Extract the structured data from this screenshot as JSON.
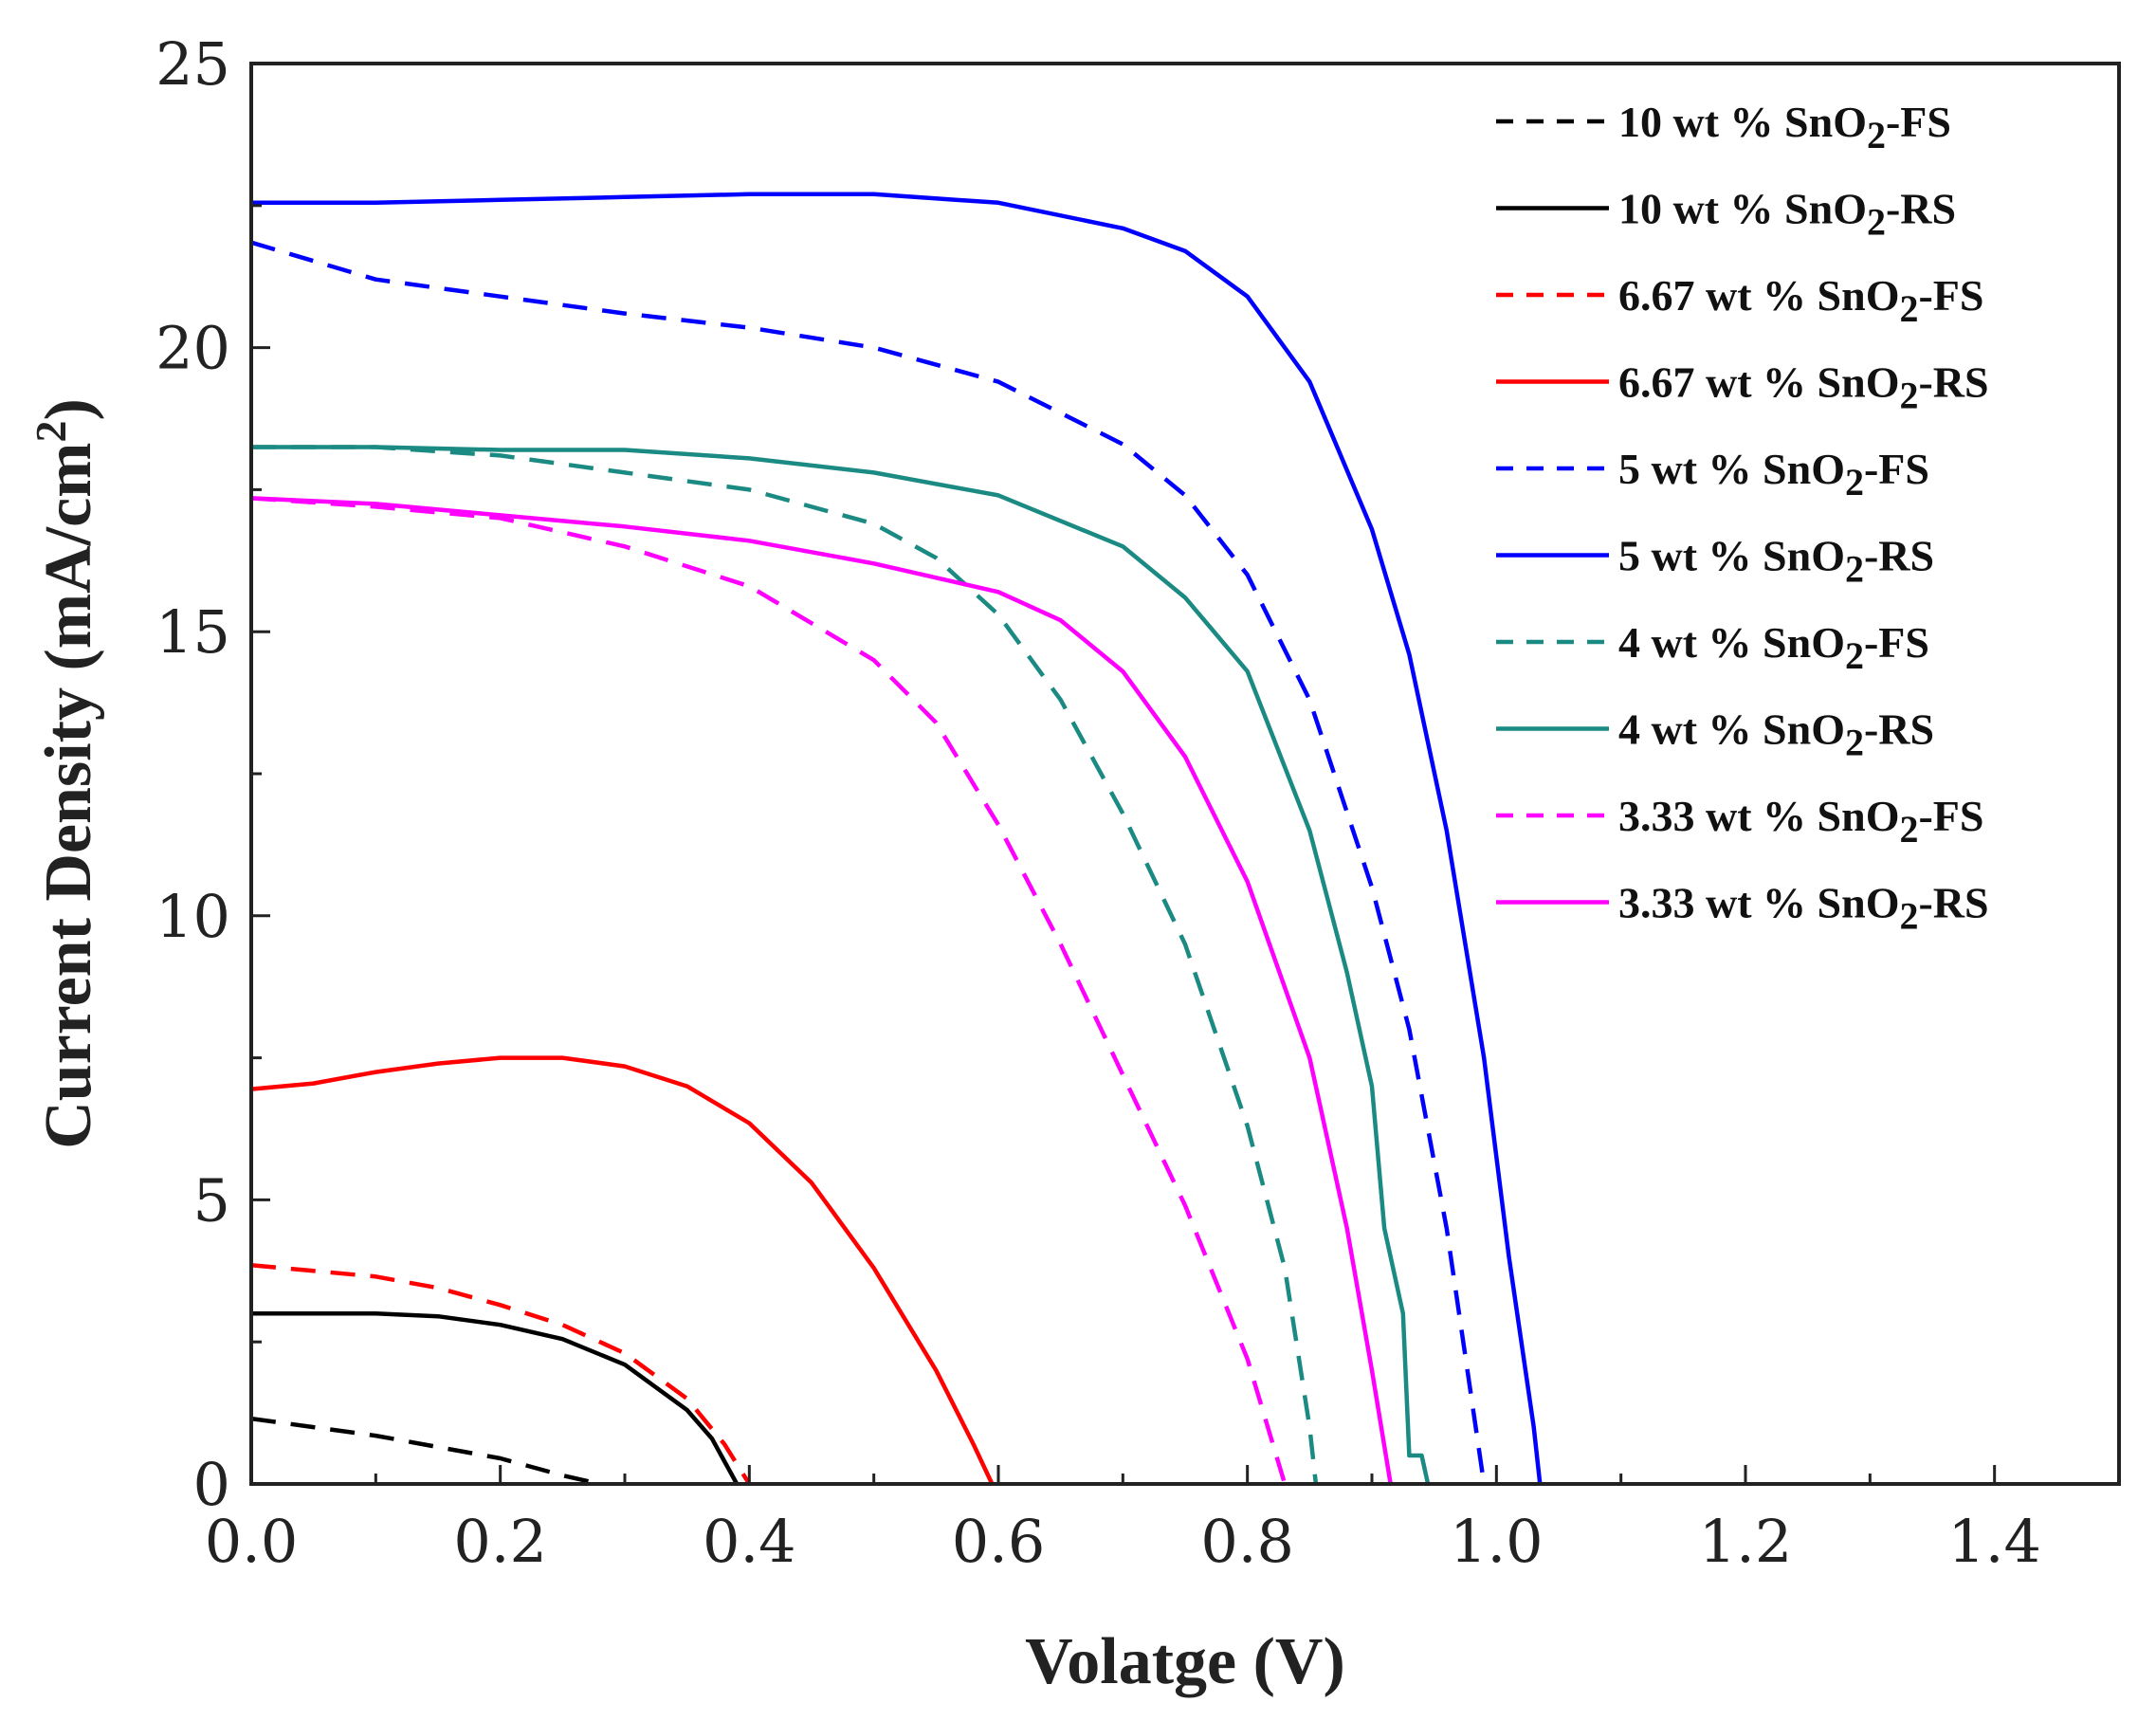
{
  "chart_data": {
    "type": "line",
    "title": "",
    "xlabel": "Volatge (V)",
    "ylabel": "Current Density (mA/cm",
    "ylabel_sup": "2",
    "ylabel_close": ")",
    "xlim": [
      0,
      1.5
    ],
    "ylim": [
      0,
      25
    ],
    "xticks": [
      0.0,
      0.2,
      0.4,
      0.6,
      0.8,
      1.0,
      1.2,
      1.4
    ],
    "xtick_labels": [
      "0.0",
      "0.2",
      "0.4",
      "0.6",
      "0.8",
      "1.0",
      "1.2",
      "1.4"
    ],
    "yticks": [
      0,
      5,
      10,
      15,
      20,
      25
    ],
    "ytick_labels": [
      "0",
      "5",
      "10",
      "15",
      "20",
      "25"
    ],
    "legend_position": "top-right",
    "series": [
      {
        "name_prefix": "10 wt % SnO",
        "name_sub": "2",
        "name_suffix": "-FS",
        "color": "#000000",
        "dash": true,
        "points": [
          [
            0,
            1.15
          ],
          [
            0.05,
            1.0
          ],
          [
            0.1,
            0.85
          ],
          [
            0.15,
            0.65
          ],
          [
            0.2,
            0.45
          ],
          [
            0.25,
            0.15
          ],
          [
            0.28,
            0.0
          ]
        ]
      },
      {
        "name_prefix": "10 wt % SnO",
        "name_sub": "2",
        "name_suffix": "-RS",
        "color": "#000000",
        "dash": false,
        "points": [
          [
            0,
            3.0
          ],
          [
            0.1,
            3.0
          ],
          [
            0.15,
            2.95
          ],
          [
            0.2,
            2.8
          ],
          [
            0.25,
            2.55
          ],
          [
            0.3,
            2.1
          ],
          [
            0.35,
            1.3
          ],
          [
            0.37,
            0.8
          ],
          [
            0.39,
            0.0
          ]
        ]
      },
      {
        "name_prefix": "6.67 wt % SnO",
        "name_sub": "2",
        "name_suffix": "-FS",
        "color": "#ff0000",
        "dash": true,
        "points": [
          [
            0,
            3.85
          ],
          [
            0.05,
            3.75
          ],
          [
            0.1,
            3.65
          ],
          [
            0.15,
            3.45
          ],
          [
            0.2,
            3.15
          ],
          [
            0.25,
            2.8
          ],
          [
            0.3,
            2.3
          ],
          [
            0.35,
            1.5
          ],
          [
            0.38,
            0.7
          ],
          [
            0.4,
            0.0
          ]
        ]
      },
      {
        "name_prefix": "6.67 wt % SnO",
        "name_sub": "2",
        "name_suffix": "-RS",
        "color": "#ff0000",
        "dash": false,
        "points": [
          [
            0,
            6.95
          ],
          [
            0.05,
            7.05
          ],
          [
            0.1,
            7.25
          ],
          [
            0.15,
            7.4
          ],
          [
            0.2,
            7.5
          ],
          [
            0.25,
            7.5
          ],
          [
            0.3,
            7.35
          ],
          [
            0.35,
            7.0
          ],
          [
            0.4,
            6.35
          ],
          [
            0.45,
            5.3
          ],
          [
            0.5,
            3.8
          ],
          [
            0.55,
            2.0
          ],
          [
            0.58,
            0.7
          ],
          [
            0.595,
            0.0
          ]
        ]
      },
      {
        "name_prefix": "5 wt % SnO",
        "name_sub": "2",
        "name_suffix": "-FS",
        "color": "#0000ff",
        "dash": true,
        "points": [
          [
            0,
            21.85
          ],
          [
            0.1,
            21.2
          ],
          [
            0.2,
            20.9
          ],
          [
            0.3,
            20.6
          ],
          [
            0.4,
            20.35
          ],
          [
            0.5,
            20.0
          ],
          [
            0.6,
            19.4
          ],
          [
            0.7,
            18.3
          ],
          [
            0.75,
            17.4
          ],
          [
            0.8,
            16.0
          ],
          [
            0.85,
            13.8
          ],
          [
            0.9,
            10.5
          ],
          [
            0.93,
            8.0
          ],
          [
            0.96,
            4.5
          ],
          [
            0.98,
            1.5
          ],
          [
            0.99,
            0.0
          ]
        ]
      },
      {
        "name_prefix": "5 wt % SnO",
        "name_sub": "2",
        "name_suffix": "-RS",
        "color": "#0000ff",
        "dash": false,
        "points": [
          [
            0,
            22.55
          ],
          [
            0.1,
            22.55
          ],
          [
            0.2,
            22.6
          ],
          [
            0.3,
            22.65
          ],
          [
            0.4,
            22.7
          ],
          [
            0.5,
            22.7
          ],
          [
            0.6,
            22.55
          ],
          [
            0.7,
            22.1
          ],
          [
            0.75,
            21.7
          ],
          [
            0.8,
            20.9
          ],
          [
            0.85,
            19.4
          ],
          [
            0.9,
            16.8
          ],
          [
            0.93,
            14.6
          ],
          [
            0.96,
            11.5
          ],
          [
            0.99,
            7.5
          ],
          [
            1.01,
            4.0
          ],
          [
            1.03,
            1.0
          ],
          [
            1.035,
            0.0
          ]
        ]
      },
      {
        "name_prefix": "4 wt % SnO",
        "name_sub": "2",
        "name_suffix": "-FS",
        "color": "#1a8a82",
        "dash": true,
        "points": [
          [
            0,
            18.25
          ],
          [
            0.1,
            18.25
          ],
          [
            0.2,
            18.1
          ],
          [
            0.3,
            17.8
          ],
          [
            0.4,
            17.5
          ],
          [
            0.5,
            16.9
          ],
          [
            0.55,
            16.3
          ],
          [
            0.6,
            15.3
          ],
          [
            0.65,
            13.8
          ],
          [
            0.7,
            11.8
          ],
          [
            0.75,
            9.5
          ],
          [
            0.8,
            6.3
          ],
          [
            0.83,
            3.8
          ],
          [
            0.85,
            1.0
          ],
          [
            0.855,
            0.0
          ]
        ]
      },
      {
        "name_prefix": "4 wt % SnO",
        "name_sub": "2",
        "name_suffix": "-RS",
        "color": "#1a8a82",
        "dash": false,
        "points": [
          [
            0,
            18.25
          ],
          [
            0.1,
            18.25
          ],
          [
            0.2,
            18.2
          ],
          [
            0.3,
            18.2
          ],
          [
            0.4,
            18.05
          ],
          [
            0.5,
            17.8
          ],
          [
            0.6,
            17.4
          ],
          [
            0.7,
            16.5
          ],
          [
            0.75,
            15.6
          ],
          [
            0.8,
            14.3
          ],
          [
            0.85,
            11.5
          ],
          [
            0.88,
            9.0
          ],
          [
            0.9,
            7.0
          ],
          [
            0.91,
            4.5
          ],
          [
            0.925,
            3.0
          ],
          [
            0.93,
            0.5
          ],
          [
            0.94,
            0.5
          ],
          [
            0.945,
            0.0
          ]
        ]
      },
      {
        "name_prefix": "3.33 wt % SnO",
        "name_sub": "2",
        "name_suffix": "-FS",
        "color": "#ff00ff",
        "dash": true,
        "points": [
          [
            0,
            17.35
          ],
          [
            0.1,
            17.2
          ],
          [
            0.2,
            17.0
          ],
          [
            0.3,
            16.5
          ],
          [
            0.4,
            15.8
          ],
          [
            0.5,
            14.5
          ],
          [
            0.55,
            13.4
          ],
          [
            0.6,
            11.6
          ],
          [
            0.65,
            9.5
          ],
          [
            0.7,
            7.2
          ],
          [
            0.75,
            4.9
          ],
          [
            0.8,
            2.2
          ],
          [
            0.83,
            0.0
          ]
        ]
      },
      {
        "name_prefix": "3.33 wt % SnO",
        "name_sub": "2",
        "name_suffix": "-RS",
        "color": "#ff00ff",
        "dash": false,
        "points": [
          [
            0,
            17.35
          ],
          [
            0.1,
            17.25
          ],
          [
            0.2,
            17.05
          ],
          [
            0.3,
            16.85
          ],
          [
            0.4,
            16.6
          ],
          [
            0.5,
            16.2
          ],
          [
            0.6,
            15.7
          ],
          [
            0.65,
            15.2
          ],
          [
            0.7,
            14.3
          ],
          [
            0.75,
            12.8
          ],
          [
            0.8,
            10.6
          ],
          [
            0.85,
            7.5
          ],
          [
            0.88,
            4.5
          ],
          [
            0.9,
            2.0
          ],
          [
            0.915,
            0.0
          ]
        ]
      }
    ]
  }
}
